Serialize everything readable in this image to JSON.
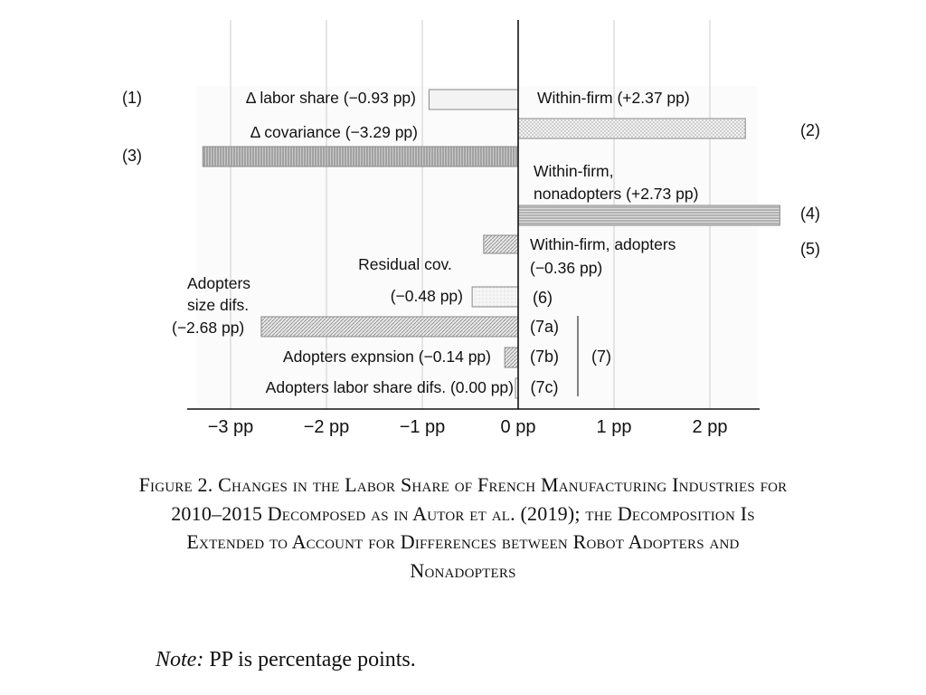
{
  "chart_data": {
    "type": "bar",
    "orientation": "horizontal",
    "unit": "pp",
    "xlim": [
      -3.35,
      2.5
    ],
    "x_ticks": [
      -3,
      -2,
      -1,
      0,
      1,
      2
    ],
    "x_tick_labels": [
      "−3 pp",
      "−2 pp",
      "−1 pp",
      "0 pp",
      "1 pp",
      "2 pp"
    ],
    "grid": true,
    "bars": [
      {
        "id": "1",
        "marker": "(1)",
        "marker_color": "#000000",
        "value": -0.93,
        "text": "Δ labor share",
        "value_text": "(−0.93 pp)"
      },
      {
        "id": "2",
        "marker": "(2)",
        "marker_color": "#d7301f",
        "value": 2.37,
        "text": "Within-firm",
        "value_text": "(+2.37 pp)"
      },
      {
        "id": "3",
        "marker": "(3)",
        "marker_color": "#1f3fd8",
        "value": -3.29,
        "text": "Δ covariance",
        "value_text": "(−3.29 pp)"
      },
      {
        "id": "4",
        "marker": "(4)",
        "marker_color": "#d7301f",
        "value": 2.73,
        "text": "Within-firm,",
        "text2": "nonadopters",
        "value_text": "(+2.73 pp)"
      },
      {
        "id": "5",
        "marker": "(5)",
        "marker_color": "#d7301f",
        "value": -0.36,
        "text": "Within-firm, adopters",
        "value_text": "(−0.36 pp)"
      },
      {
        "id": "6",
        "marker": "(6)",
        "marker_color": "#3fd23f",
        "value": -0.48,
        "text": "Residual cov.",
        "value_text": "(−0.48 pp)"
      },
      {
        "id": "7a",
        "marker": "(7a)",
        "marker_color": "#f0931e",
        "value": -2.68,
        "text": "Adopters",
        "text2": "size difs.",
        "value_text": "(−2.68 pp)"
      },
      {
        "id": "7b",
        "marker": "(7b)",
        "marker_color": "#f0931e",
        "value": -0.14,
        "text": "Adopters expnsion",
        "value_text": "(−0.14 pp)"
      },
      {
        "id": "7c",
        "marker": "(7c)",
        "marker_color": "#f0931e",
        "value": 0.0,
        "text": "Adopters labor share difs.",
        "value_text": "(0.00 pp)"
      }
    ],
    "group_marker": {
      "label": "(7)",
      "color": "#f0931e",
      "members": [
        "7a",
        "7b",
        "7c"
      ]
    }
  },
  "caption": {
    "title": "Figure 2. Changes in the Labor Share of French Manufacturing Industries for 2010–2015 Decomposed as in Autor et al. (2019); the Decomposition Is Extended to Account for Differences between Robot Adopters and Nonadopters"
  },
  "note": {
    "label": "Note:",
    "text": "PP is percentage points."
  }
}
